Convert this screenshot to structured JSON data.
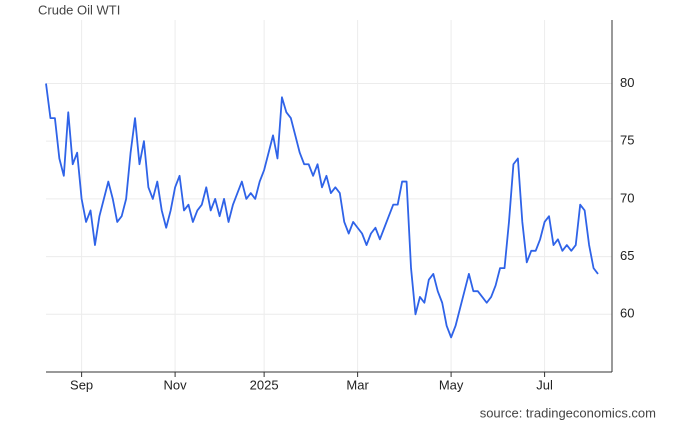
{
  "chart_data": {
    "type": "line",
    "title": "Crude Oil WTI",
    "source": "source: tradingeconomics.com",
    "categories": [
      null,
      null,
      null,
      null,
      null,
      null,
      null,
      null,
      "Sep",
      null,
      null,
      null,
      null,
      null,
      null,
      null,
      null,
      null,
      null,
      null,
      null,
      null,
      null,
      null,
      null,
      null,
      null,
      null,
      null,
      "Nov",
      null,
      null,
      null,
      null,
      null,
      null,
      null,
      null,
      null,
      null,
      null,
      null,
      null,
      null,
      null,
      null,
      null,
      null,
      null,
      "2025",
      null,
      null,
      null,
      null,
      null,
      null,
      null,
      null,
      null,
      null,
      null,
      null,
      null,
      null,
      null,
      null,
      null,
      null,
      null,
      null,
      "Mar",
      null,
      null,
      null,
      null,
      null,
      null,
      null,
      null,
      null,
      null,
      null,
      null,
      null,
      null,
      null,
      null,
      null,
      null,
      null,
      null,
      "May",
      null,
      null,
      null,
      null,
      null,
      null,
      null,
      null,
      null,
      null,
      null,
      null,
      null,
      null,
      null,
      null,
      null,
      null,
      null,
      null,
      "Jul",
      null,
      null,
      null,
      null,
      null,
      null,
      null,
      null,
      null,
      null,
      null,
      null
    ],
    "values": [
      80,
      77,
      77,
      73.5,
      72,
      77.5,
      73,
      74,
      70,
      68,
      69,
      66,
      68.5,
      70,
      71.5,
      70,
      68,
      68.5,
      70,
      74,
      77,
      73,
      75,
      71,
      70,
      71.5,
      69,
      67.5,
      69,
      71,
      72,
      69,
      69.5,
      68,
      69,
      69.5,
      71,
      69,
      70,
      68.5,
      70,
      68,
      69.5,
      70.5,
      71.5,
      70,
      70.5,
      70,
      71.5,
      72.5,
      74,
      75.5,
      73.5,
      78.8,
      77.5,
      77,
      75.5,
      74,
      73,
      73,
      72,
      73,
      71,
      72,
      70.5,
      71,
      70.5,
      68,
      67,
      68,
      67.5,
      67,
      66,
      67,
      67.5,
      66.5,
      67.5,
      68.5,
      69.5,
      69.5,
      71.5,
      71.5,
      64,
      60,
      61.5,
      61,
      63,
      63.5,
      62,
      61,
      59,
      58,
      59,
      60.5,
      62,
      63.5,
      62,
      62,
      61.5,
      61,
      61.5,
      62.5,
      64,
      64,
      68,
      73,
      73.5,
      68,
      64.5,
      65.5,
      65.5,
      66.5,
      68,
      68.5,
      66,
      66.5,
      65.5,
      66,
      65.5,
      66,
      69.5,
      69,
      66,
      64,
      63.5
    ],
    "color": "#2f63e8",
    "ylim": [
      55,
      85.5
    ],
    "yticks": [
      60,
      65,
      70,
      75,
      80
    ],
    "grid": true
  }
}
